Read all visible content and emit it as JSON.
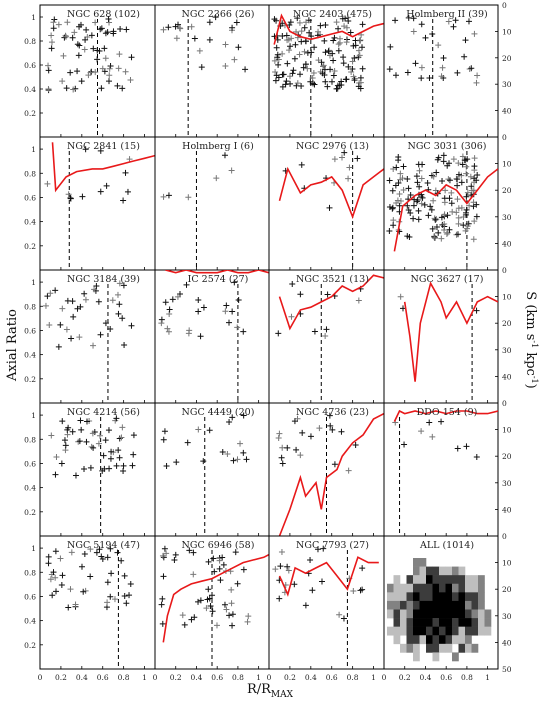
{
  "figure": {
    "xlabel": "R/R",
    "xlabel_sub": "MAX",
    "ylabel_left": "Axial Ratio",
    "ylabel_right": "S (km s",
    "ylabel_right_sup1": "-1",
    "ylabel_right_mid": " kpc",
    "ylabel_right_sup2": "-1",
    "ylabel_right_end": ")"
  },
  "colors": {
    "velocity_curve": "#e8191a",
    "points": "#000000",
    "grid_frame": "#000000"
  },
  "chart_data": {
    "type": "scatter",
    "layout": "5x4 panel grid",
    "x_ticks": [
      "0",
      "0.2",
      "0.4",
      "0.6",
      "0.8",
      "1"
    ],
    "left_ticks": [
      "0.2",
      "0.4",
      "0.6",
      "0.8",
      "1"
    ],
    "right_ticks": [
      "0",
      "10",
      "20",
      "30",
      "40",
      "50"
    ],
    "xlim": [
      0,
      1.1
    ],
    "left_ylim": [
      0,
      1.1
    ],
    "right_ylim": [
      0,
      50
    ],
    "panels": [
      {
        "title": "NGC 628 (102)",
        "dash": 0.55,
        "seed": 11,
        "n": 70,
        "ymin": 0.35,
        "ymax": 1.0,
        "curve": null
      },
      {
        "title": "NGC 2366 (26)",
        "dash": 0.32,
        "seed": 12,
        "n": 22,
        "ymin": 0.55,
        "ymax": 1.0,
        "curve": null
      },
      {
        "title": "NGC 2403 (475)",
        "dash": 0.4,
        "seed": 13,
        "n": 150,
        "ymin": 0.4,
        "ymax": 1.0,
        "curve": [
          [
            0.05,
            15
          ],
          [
            0.12,
            4
          ],
          [
            0.2,
            10
          ],
          [
            0.3,
            12
          ],
          [
            0.4,
            13
          ],
          [
            0.5,
            12
          ],
          [
            0.6,
            11
          ],
          [
            0.7,
            10
          ],
          [
            0.8,
            12
          ],
          [
            0.9,
            10
          ],
          [
            1.0,
            8
          ],
          [
            1.1,
            7
          ]
        ]
      },
      {
        "title": "Holmberg II (39)",
        "dash": 0.47,
        "seed": 14,
        "n": 32,
        "ymin": 0.45,
        "ymax": 1.0,
        "curve": null
      },
      {
        "title": "NGC 2841 (15)",
        "dash": 0.28,
        "seed": 21,
        "n": 13,
        "ymin": 0.5,
        "ymax": 1.0,
        "curve": [
          [
            0.12,
            2
          ],
          [
            0.15,
            20
          ],
          [
            0.25,
            15
          ],
          [
            0.35,
            13
          ],
          [
            0.5,
            12
          ],
          [
            0.6,
            12
          ],
          [
            0.7,
            11
          ],
          [
            0.8,
            10
          ],
          [
            0.9,
            9
          ],
          [
            1.0,
            8
          ],
          [
            1.1,
            7
          ]
        ]
      },
      {
        "title": "Holmberg I (6)",
        "dash": 0.4,
        "seed": 22,
        "n": 6,
        "ymin": 0.6,
        "ymax": 0.95,
        "curve": null
      },
      {
        "title": "NGC 2976 (13)",
        "dash": 0.8,
        "seed": 23,
        "n": 12,
        "ymin": 0.5,
        "ymax": 1.0,
        "curve": [
          [
            0.1,
            24
          ],
          [
            0.18,
            12
          ],
          [
            0.3,
            21
          ],
          [
            0.4,
            18
          ],
          [
            0.5,
            17
          ],
          [
            0.6,
            15
          ],
          [
            0.7,
            20
          ],
          [
            0.8,
            30
          ],
          [
            0.9,
            18
          ],
          [
            1.0,
            15
          ],
          [
            1.1,
            12
          ]
        ]
      },
      {
        "title": "NGC 3031 (306)",
        "dash": 0.8,
        "seed": 24,
        "n": 160,
        "ymin": 0.25,
        "ymax": 0.95,
        "curve": [
          [
            0.1,
            43
          ],
          [
            0.18,
            26
          ],
          [
            0.3,
            22
          ],
          [
            0.4,
            20
          ],
          [
            0.5,
            22
          ],
          [
            0.6,
            18
          ],
          [
            0.7,
            20
          ],
          [
            0.8,
            25
          ],
          [
            0.9,
            20
          ],
          [
            1.0,
            15
          ],
          [
            1.1,
            12
          ]
        ]
      },
      {
        "title": "NGC 3184 (39)",
        "dash": 0.65,
        "seed": 31,
        "n": 35,
        "ymin": 0.45,
        "ymax": 1.0,
        "curve": null
      },
      {
        "title": "IC 2574 (27)",
        "dash": 0.8,
        "seed": 32,
        "n": 25,
        "ymin": 0.55,
        "ymax": 1.0,
        "curve": [
          [
            0.1,
            0
          ],
          [
            0.2,
            1
          ],
          [
            0.3,
            0
          ],
          [
            0.4,
            1
          ],
          [
            0.5,
            1
          ],
          [
            0.6,
            1
          ],
          [
            0.7,
            0
          ],
          [
            0.8,
            1
          ],
          [
            0.9,
            1
          ],
          [
            1.0,
            0
          ],
          [
            1.1,
            1
          ]
        ]
      },
      {
        "title": "NGC 3521 (13)",
        "dash": 0.5,
        "seed": 33,
        "n": 12,
        "ymin": 0.5,
        "ymax": 1.0,
        "curve": [
          [
            0.1,
            10
          ],
          [
            0.2,
            22
          ],
          [
            0.3,
            15
          ],
          [
            0.4,
            14
          ],
          [
            0.5,
            12
          ],
          [
            0.6,
            10
          ],
          [
            0.7,
            6
          ],
          [
            0.8,
            8
          ],
          [
            0.9,
            6
          ],
          [
            1.0,
            2
          ],
          [
            1.1,
            3
          ]
        ]
      },
      {
        "title": "NGC 3627 (17)",
        "dash": 0.85,
        "seed": 34,
        "n": 3,
        "ymin": 0.7,
        "ymax": 1.0,
        "curve": [
          [
            0.2,
            12
          ],
          [
            0.25,
            25
          ],
          [
            0.3,
            42
          ],
          [
            0.35,
            20
          ],
          [
            0.45,
            5
          ],
          [
            0.55,
            12
          ],
          [
            0.6,
            18
          ],
          [
            0.7,
            12
          ],
          [
            0.8,
            20
          ],
          [
            0.9,
            12
          ],
          [
            1.0,
            10
          ],
          [
            1.1,
            12
          ]
        ]
      },
      {
        "title": "NGC 4214 (56)",
        "dash": 0.58,
        "seed": 41,
        "n": 50,
        "ymin": 0.5,
        "ymax": 1.0,
        "curve": null
      },
      {
        "title": "NGC 4449 (20)",
        "dash": 0.48,
        "seed": 42,
        "n": 18,
        "ymin": 0.55,
        "ymax": 1.0,
        "curve": null
      },
      {
        "title": "NGC 4736 (23)",
        "dash": 0.55,
        "seed": 43,
        "n": 20,
        "ymin": 0.5,
        "ymax": 1.0,
        "curve": [
          [
            0.1,
            50
          ],
          [
            0.2,
            40
          ],
          [
            0.3,
            28
          ],
          [
            0.35,
            35
          ],
          [
            0.45,
            30
          ],
          [
            0.5,
            40
          ],
          [
            0.55,
            28
          ],
          [
            0.65,
            25
          ],
          [
            0.7,
            20
          ],
          [
            0.8,
            15
          ],
          [
            0.9,
            12
          ],
          [
            1.0,
            6
          ],
          [
            1.1,
            4
          ]
        ]
      },
      {
        "title": "DDO 154 (9)",
        "dash": 0.15,
        "seed": 44,
        "n": 9,
        "ymin": 0.6,
        "ymax": 1.0,
        "curve": [
          [
            0.1,
            7
          ],
          [
            0.15,
            3
          ],
          [
            0.2,
            4
          ],
          [
            0.3,
            3
          ],
          [
            0.4,
            4
          ],
          [
            0.5,
            3
          ],
          [
            0.6,
            4
          ],
          [
            0.7,
            3
          ],
          [
            0.8,
            3
          ],
          [
            0.9,
            4
          ],
          [
            1.0,
            4
          ],
          [
            1.1,
            3
          ]
        ]
      },
      {
        "title": "NGC 5194 (47)",
        "dash": 0.75,
        "seed": 51,
        "n": 42,
        "ymin": 0.45,
        "ymax": 1.0,
        "curve": null
      },
      {
        "title": "NGC 6946 (58)",
        "dash": 0.55,
        "seed": 52,
        "n": 50,
        "ymin": 0.35,
        "ymax": 1.0,
        "curve": [
          [
            0.08,
            40
          ],
          [
            0.12,
            30
          ],
          [
            0.18,
            22
          ],
          [
            0.25,
            20
          ],
          [
            0.35,
            18
          ],
          [
            0.45,
            17
          ],
          [
            0.55,
            16
          ],
          [
            0.65,
            14
          ],
          [
            0.75,
            12
          ],
          [
            0.85,
            10
          ],
          [
            0.95,
            9
          ],
          [
            1.05,
            8
          ],
          [
            1.1,
            7
          ]
        ]
      },
      {
        "title": "NGC 7793 (27)",
        "dash": 0.75,
        "seed": 53,
        "n": 24,
        "ymin": 0.4,
        "ymax": 1.0,
        "curve": [
          [
            0.1,
            15
          ],
          [
            0.18,
            22
          ],
          [
            0.25,
            12
          ],
          [
            0.35,
            14
          ],
          [
            0.45,
            12
          ],
          [
            0.55,
            10
          ],
          [
            0.65,
            15
          ],
          [
            0.75,
            20
          ],
          [
            0.85,
            8
          ],
          [
            0.95,
            10
          ],
          [
            1.05,
            10
          ]
        ]
      },
      {
        "title": "ALL (1014)",
        "dash": null,
        "seed": 54,
        "n": 0,
        "ymin": 0,
        "ymax": 0,
        "curve": null,
        "heatmap": true
      }
    ]
  }
}
